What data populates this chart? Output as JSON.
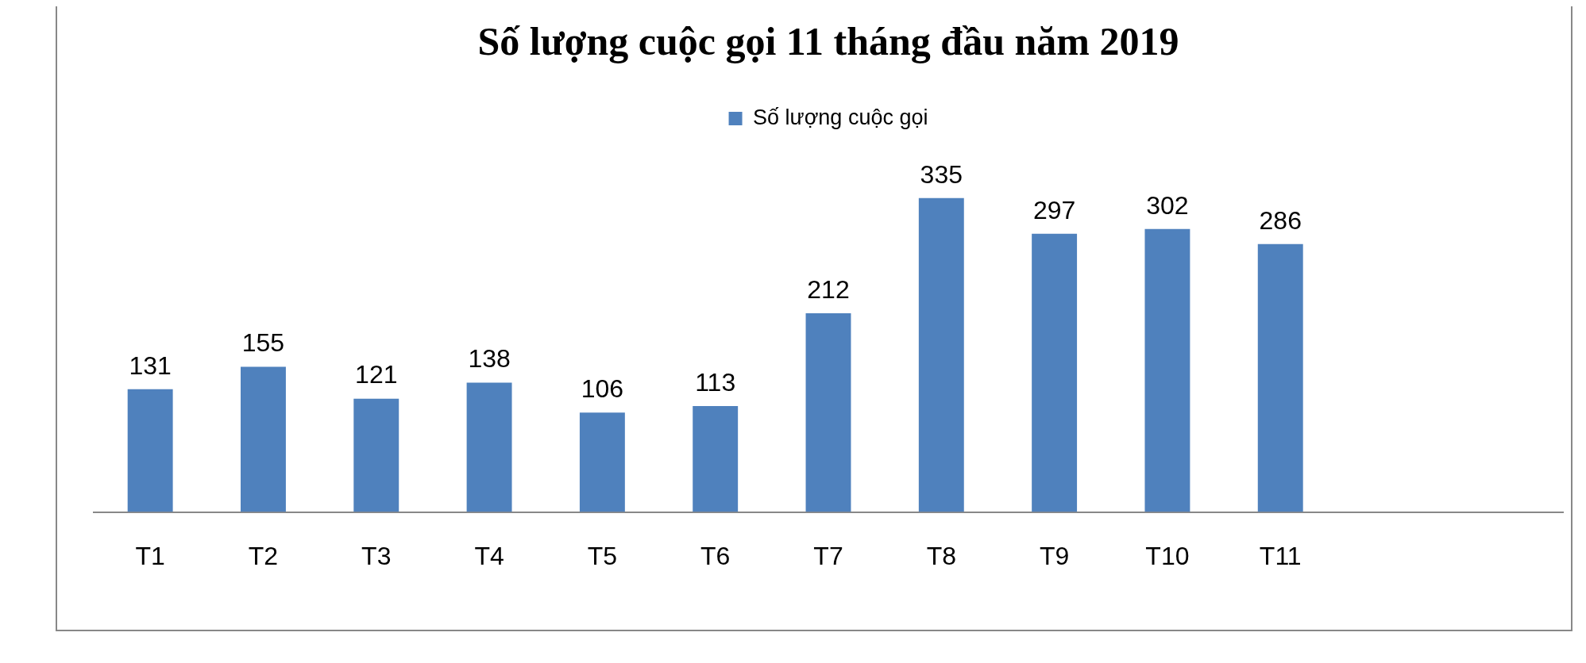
{
  "chart_data": {
    "type": "bar",
    "title": "Số lượng cuộc gọi 11 tháng đầu năm 2019",
    "categories": [
      "T1",
      "T2",
      "T3",
      "T4",
      "T5",
      "T6",
      "T7",
      "T8",
      "T9",
      "T10",
      "T11",
      null,
      null
    ],
    "series": [
      {
        "name": "Số lượng cuộc gọi",
        "color": "#4f81bd",
        "values": [
          131,
          155,
          121,
          138,
          106,
          113,
          212,
          335,
          297,
          302,
          286,
          null,
          null
        ]
      }
    ],
    "data_labels": true,
    "legend": "top",
    "grid": false
  }
}
